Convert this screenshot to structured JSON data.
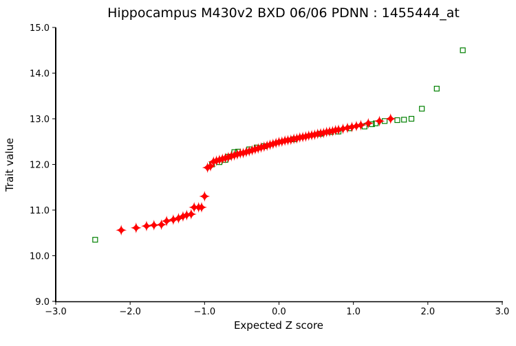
{
  "chart_data": {
    "type": "scatter",
    "title": "Hippocampus M430v2 BXD 06/06 PDNN : 1455444_at",
    "xlabel": "Expected Z score",
    "ylabel": "Trait value",
    "xlim": [
      -3.0,
      3.0
    ],
    "ylim": [
      9.0,
      15.0
    ],
    "xticks": [
      "-3.0",
      "-2.0",
      "-1.0",
      "0.0",
      "1.0",
      "2.0",
      "3.0"
    ],
    "yticks": [
      "9.0",
      "10.0",
      "11.0",
      "12.0",
      "13.0",
      "14.0",
      "15.0"
    ],
    "grid": false,
    "series": [
      {
        "marker": "square-open",
        "color": "#008000",
        "points": [
          [
            -2.47,
            10.35
          ],
          [
            -0.9,
            12.0
          ],
          [
            -0.8,
            12.05
          ],
          [
            -0.72,
            12.1
          ],
          [
            -0.68,
            12.17
          ],
          [
            -0.6,
            12.27
          ],
          [
            -0.55,
            12.28
          ],
          [
            -0.4,
            12.33
          ],
          [
            -0.3,
            12.37
          ],
          [
            -0.2,
            12.4
          ],
          [
            0.2,
            12.55
          ],
          [
            0.55,
            12.67
          ],
          [
            0.7,
            12.71
          ],
          [
            0.8,
            12.72
          ],
          [
            0.95,
            12.79
          ],
          [
            1.15,
            12.83
          ],
          [
            1.25,
            12.88
          ],
          [
            1.3,
            12.9
          ],
          [
            1.42,
            12.95
          ],
          [
            1.59,
            12.97
          ],
          [
            1.68,
            12.98
          ],
          [
            1.78,
            13.0
          ],
          [
            1.92,
            13.22
          ],
          [
            2.12,
            13.66
          ],
          [
            2.47,
            14.5
          ]
        ]
      },
      {
        "marker": "diamond-star",
        "color": "#ff0000",
        "points": [
          [
            -2.12,
            10.56
          ],
          [
            -1.92,
            10.61
          ],
          [
            -1.78,
            10.65
          ],
          [
            -1.68,
            10.67
          ],
          [
            -1.58,
            10.68
          ],
          [
            -1.51,
            10.76
          ],
          [
            -1.42,
            10.79
          ],
          [
            -1.35,
            10.82
          ],
          [
            -1.29,
            10.86
          ],
          [
            -1.24,
            10.89
          ],
          [
            -1.18,
            10.91
          ],
          [
            -1.14,
            11.06
          ],
          [
            -1.08,
            11.06
          ],
          [
            -1.04,
            11.06
          ],
          [
            -1.0,
            11.3
          ],
          [
            -0.96,
            11.93
          ],
          [
            -0.92,
            11.96
          ],
          [
            -0.88,
            12.06
          ],
          [
            -0.84,
            12.08
          ],
          [
            -0.8,
            12.1
          ],
          [
            -0.76,
            12.12
          ],
          [
            -0.72,
            12.14
          ],
          [
            -0.68,
            12.16
          ],
          [
            -0.64,
            12.18
          ],
          [
            -0.6,
            12.2
          ],
          [
            -0.56,
            12.22
          ],
          [
            -0.52,
            12.24
          ],
          [
            -0.48,
            12.25
          ],
          [
            -0.44,
            12.27
          ],
          [
            -0.4,
            12.29
          ],
          [
            -0.36,
            12.31
          ],
          [
            -0.32,
            12.33
          ],
          [
            -0.28,
            12.35
          ],
          [
            -0.24,
            12.37
          ],
          [
            -0.2,
            12.39
          ],
          [
            -0.16,
            12.41
          ],
          [
            -0.12,
            12.43
          ],
          [
            -0.08,
            12.45
          ],
          [
            -0.04,
            12.47
          ],
          [
            0,
            12.49
          ],
          [
            0.04,
            12.5
          ],
          [
            0.08,
            12.52
          ],
          [
            0.12,
            12.53
          ],
          [
            0.16,
            12.54
          ],
          [
            0.2,
            12.56
          ],
          [
            0.24,
            12.57
          ],
          [
            0.28,
            12.59
          ],
          [
            0.32,
            12.6
          ],
          [
            0.36,
            12.61
          ],
          [
            0.4,
            12.63
          ],
          [
            0.44,
            12.64
          ],
          [
            0.48,
            12.65
          ],
          [
            0.52,
            12.67
          ],
          [
            0.56,
            12.68
          ],
          [
            0.6,
            12.69
          ],
          [
            0.64,
            12.71
          ],
          [
            0.68,
            12.72
          ],
          [
            0.72,
            12.73
          ],
          [
            0.76,
            12.75
          ],
          [
            0.8,
            12.76
          ],
          [
            0.86,
            12.78
          ],
          [
            0.92,
            12.8
          ],
          [
            0.98,
            12.82
          ],
          [
            1.04,
            12.84
          ],
          [
            1.1,
            12.86
          ],
          [
            1.2,
            12.9
          ],
          [
            1.35,
            12.95
          ],
          [
            1.5,
            13.0
          ]
        ]
      }
    ]
  }
}
